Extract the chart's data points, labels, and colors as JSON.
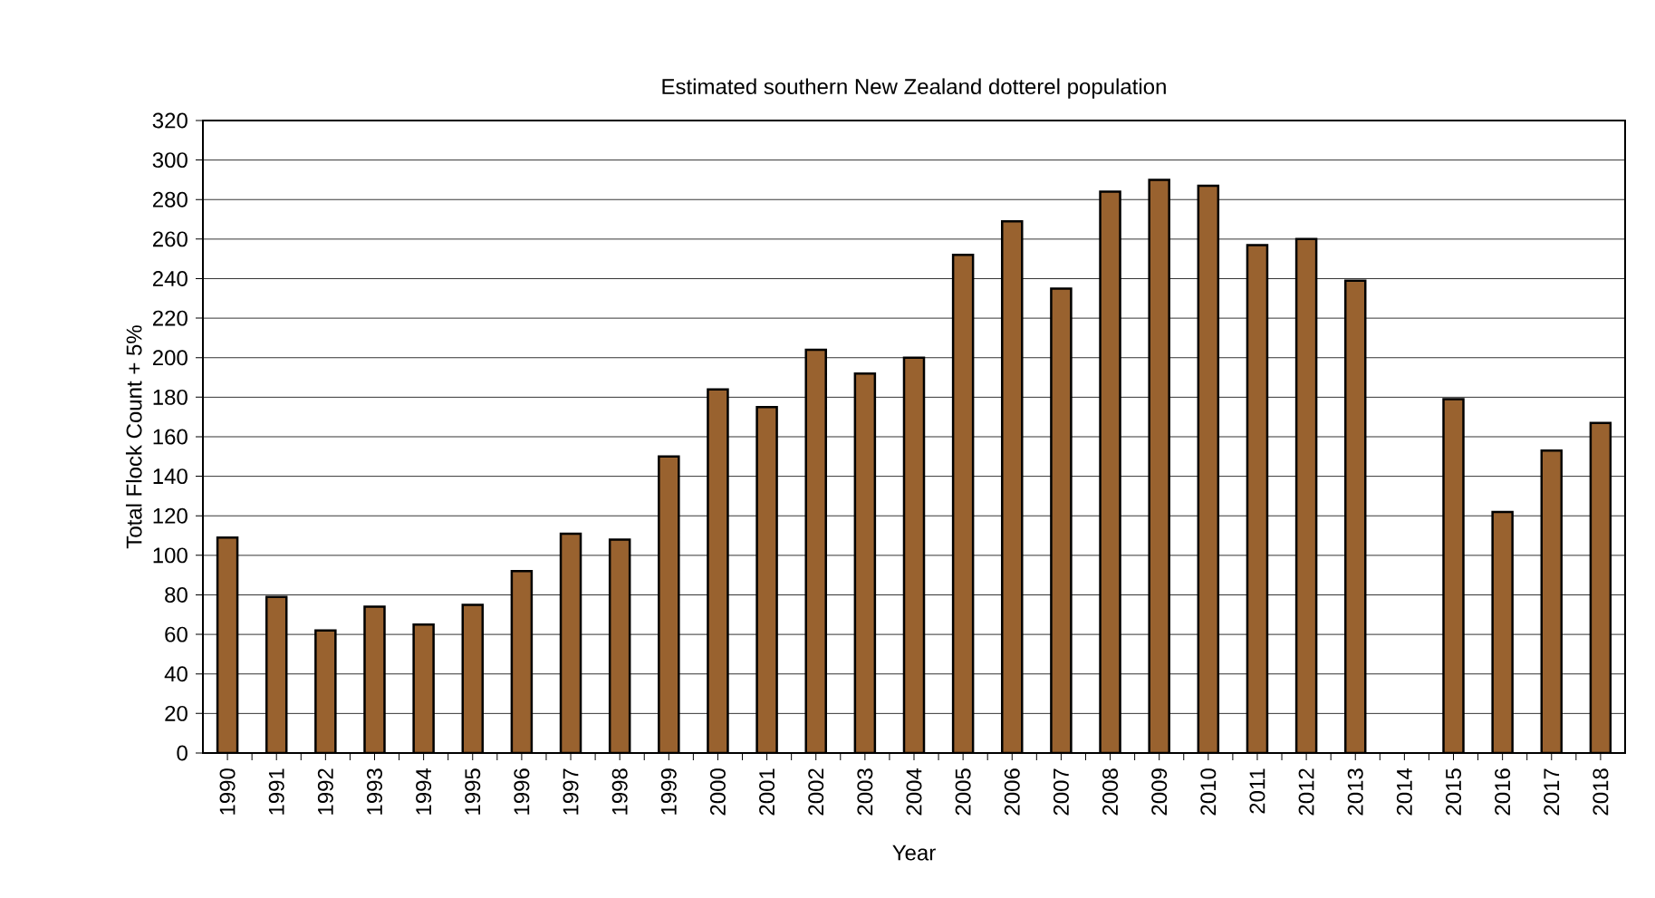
{
  "chart_data": {
    "type": "bar",
    "title": "Estimated southern New Zealand dotterel population",
    "xlabel": "Year",
    "ylabel": "Total Flock Count + 5%",
    "categories": [
      "1990",
      "1991",
      "1992",
      "1993",
      "1994",
      "1995",
      "1996",
      "1997",
      "1998",
      "1999",
      "2000",
      "2001",
      "2002",
      "2003",
      "2004",
      "2005",
      "2006",
      "2007",
      "2008",
      "2009",
      "2010",
      "2011",
      "2012",
      "2013",
      "2014",
      "2015",
      "2016",
      "2017",
      "2018"
    ],
    "values": [
      109,
      79,
      62,
      74,
      65,
      75,
      92,
      111,
      108,
      150,
      184,
      175,
      204,
      192,
      200,
      252,
      269,
      235,
      284,
      290,
      287,
      257,
      260,
      239,
      null,
      179,
      122,
      153,
      167
    ],
    "color": "#99622f",
    "ylim": [
      0,
      320
    ],
    "yticks": [
      0,
      20,
      40,
      60,
      80,
      100,
      120,
      140,
      160,
      180,
      200,
      220,
      240,
      260,
      280,
      300,
      320
    ],
    "grid": "y"
  }
}
